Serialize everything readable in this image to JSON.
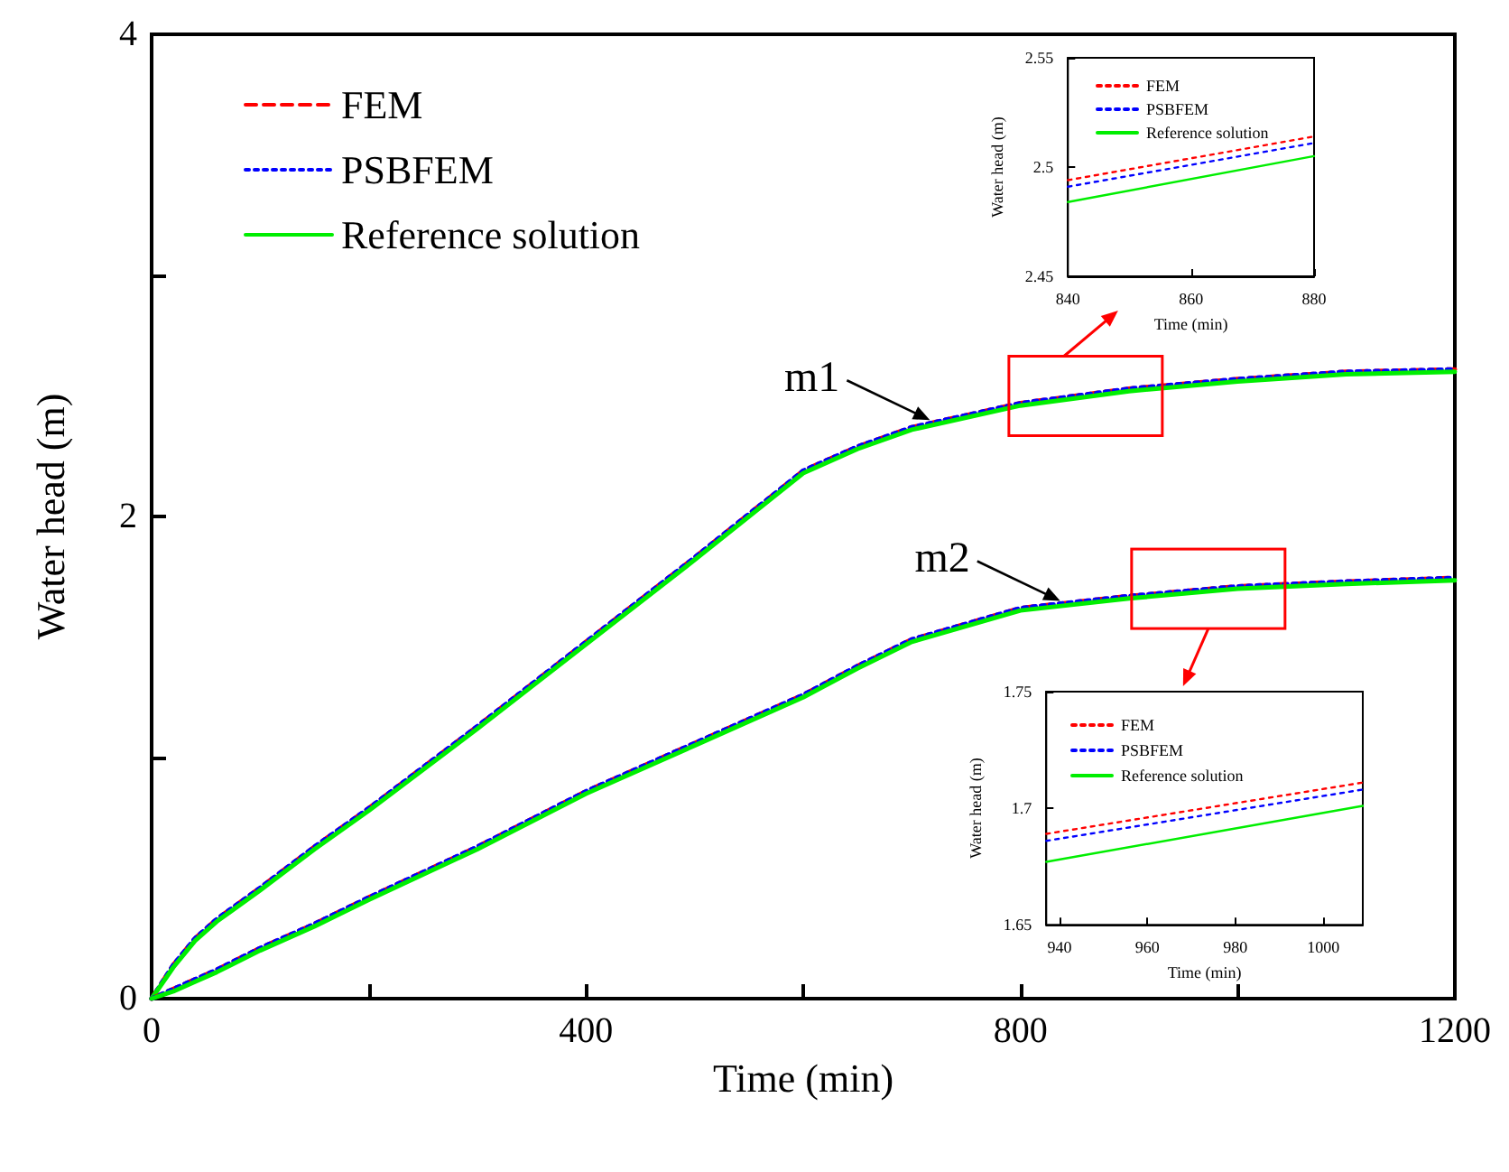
{
  "chart_data": [
    {
      "type": "line",
      "xlabel": "Time (min)",
      "ylabel": "Water head (m)",
      "legend": "top left",
      "grid": false,
      "x": [
        0,
        20,
        40,
        60,
        100,
        150,
        200,
        300,
        400,
        500,
        600,
        650,
        700,
        800,
        900,
        1000,
        1100,
        1200
      ],
      "xlim": [
        0,
        1200
      ],
      "xticks": [
        0,
        {
          "value": 200,
          "label": null
        },
        400,
        {
          "value": 600,
          "label": null
        },
        800,
        {
          "value": 1000,
          "label": null
        },
        1200
      ],
      "ylim": [
        0,
        4
      ],
      "yticks": [
        0,
        {
          "value": 1,
          "label": null
        },
        2,
        {
          "value": 3,
          "label": null
        },
        4
      ],
      "annotations": [
        {
          "text": "m1",
          "x": 720,
          "y": 2.37
        },
        {
          "text": "m2",
          "x": 840,
          "y": 1.62
        }
      ],
      "series": [
        {
          "name": "FEM",
          "color": "#ff0000",
          "line_style": "dashed",
          "values": [
            0,
            0.14,
            0.25,
            0.33,
            0.46,
            0.63,
            0.79,
            1.13,
            1.48,
            1.83,
            2.19,
            2.29,
            2.37,
            2.47,
            2.53,
            2.57,
            2.6,
            2.61
          ]
        },
        {
          "name": "PSBFEM",
          "color": "#0000ff",
          "line_style": "dotted",
          "values": [
            0,
            0.14,
            0.25,
            0.33,
            0.46,
            0.63,
            0.79,
            1.13,
            1.48,
            1.83,
            2.19,
            2.29,
            2.37,
            2.47,
            2.53,
            2.57,
            2.6,
            2.61
          ]
        },
        {
          "name": "Reference solution",
          "color": "#00ee00",
          "line_style": "solid",
          "values": [
            0,
            0.13,
            0.24,
            0.32,
            0.45,
            0.62,
            0.78,
            1.12,
            1.47,
            1.82,
            2.18,
            2.28,
            2.36,
            2.46,
            2.52,
            2.56,
            2.59,
            2.6
          ]
        },
        {
          "color": "#ff0000",
          "line_style": "dashed",
          "values": [
            0,
            0.04,
            0.08,
            0.12,
            0.21,
            0.31,
            0.42,
            0.63,
            0.86,
            1.06,
            1.26,
            1.38,
            1.49,
            1.62,
            1.67,
            1.71,
            1.73,
            1.745
          ]
        },
        {
          "color": "#0000ff",
          "line_style": "dotted",
          "values": [
            0,
            0.04,
            0.08,
            0.12,
            0.21,
            0.31,
            0.42,
            0.63,
            0.86,
            1.06,
            1.26,
            1.38,
            1.49,
            1.62,
            1.67,
            1.71,
            1.73,
            1.745
          ]
        },
        {
          "color": "#00ee00",
          "line_style": "solid",
          "values": [
            0,
            0.03,
            0.07,
            0.11,
            0.2,
            0.3,
            0.41,
            0.62,
            0.85,
            1.05,
            1.25,
            1.37,
            1.48,
            1.61,
            1.66,
            1.7,
            1.72,
            1.735
          ]
        }
      ]
    },
    {
      "type": "line",
      "xlabel": "Time (min)",
      "ylabel": "Water head (m)",
      "legend": "top left",
      "grid": false,
      "x": [
        840,
        880
      ],
      "xlim": [
        840,
        880
      ],
      "xticks": [
        840,
        860,
        880
      ],
      "ylim": [
        2.45,
        2.55
      ],
      "yticks": [
        2.45,
        2.5,
        2.55
      ],
      "series": [
        {
          "name": "FEM",
          "color": "#ff0000",
          "line_style": "dotted",
          "values": [
            2.494,
            2.514
          ]
        },
        {
          "name": "PSBFEM",
          "color": "#0000ff",
          "line_style": "dotted",
          "values": [
            2.491,
            2.511
          ]
        },
        {
          "name": "Reference solution",
          "color": "#00ee00",
          "line_style": "solid",
          "values": [
            2.484,
            2.505
          ]
        }
      ]
    },
    {
      "type": "line",
      "xlabel": "Time (min)",
      "ylabel": "Water head (m)",
      "legend": "top left",
      "grid": false,
      "x": [
        937,
        1009
      ],
      "xlim": [
        937,
        1009
      ],
      "xticks": [
        940,
        960,
        980,
        1000
      ],
      "ylim": [
        1.65,
        1.75
      ],
      "yticks": [
        1.65,
        1.7,
        1.75
      ],
      "series": [
        {
          "name": "FEM",
          "color": "#ff0000",
          "line_style": "dotted",
          "values": [
            1.689,
            1.711
          ]
        },
        {
          "name": "PSBFEM",
          "color": "#0000ff",
          "line_style": "dotted",
          "values": [
            1.686,
            1.708
          ]
        },
        {
          "name": "Reference solution",
          "color": "#00ee00",
          "line_style": "solid",
          "values": [
            1.677,
            1.701
          ]
        }
      ]
    }
  ]
}
